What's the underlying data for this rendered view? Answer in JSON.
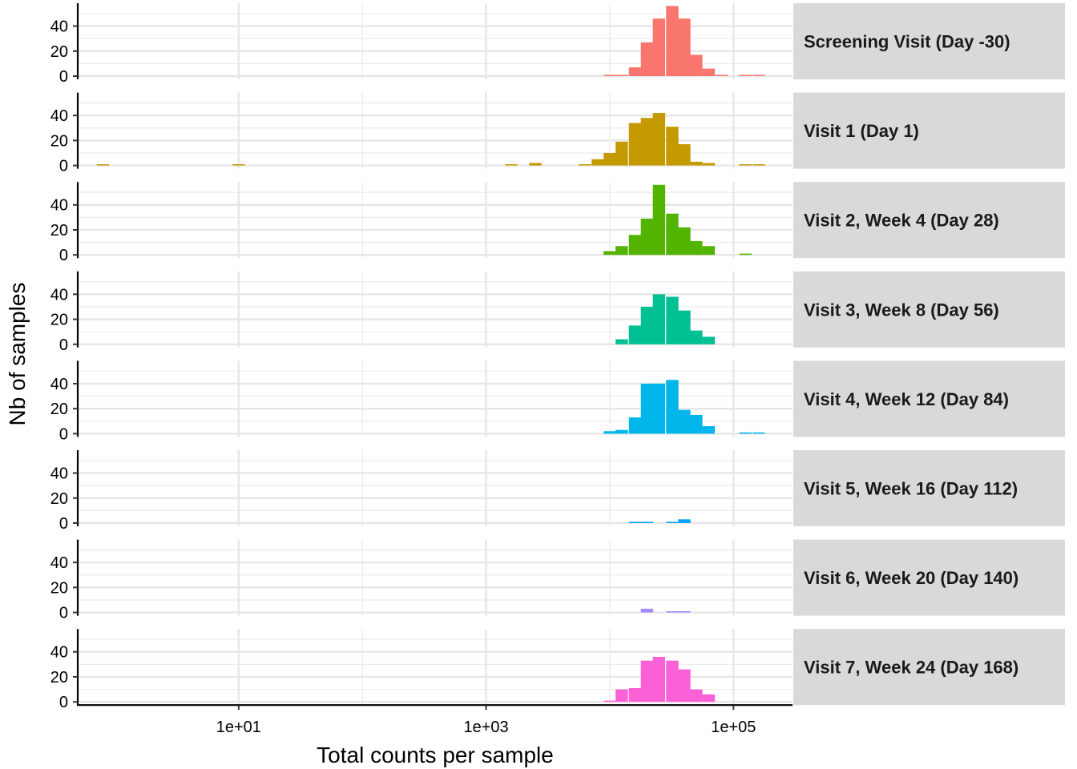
{
  "chart_data": {
    "type": "bar",
    "subtype": "faceted-histogram",
    "xlabel": "Total counts per sample",
    "ylabel": "Nb of samples",
    "x_scale": "log10",
    "xlim": [
      0.5,
      300000
    ],
    "ylim": [
      0,
      57
    ],
    "x_ticks": [
      {
        "value": 10,
        "label": "1e+01"
      },
      {
        "value": 1000,
        "label": "1e+03"
      },
      {
        "value": 100000,
        "label": "1e+05"
      }
    ],
    "y_ticks": [
      {
        "value": 0,
        "label": "0"
      },
      {
        "value": 20,
        "label": "20"
      },
      {
        "value": 40,
        "label": "40"
      }
    ],
    "grid": true,
    "legend": "none",
    "panels": [
      {
        "label": "Screening Visit (Day -30)",
        "color": "#F8766D",
        "bins": [
          {
            "x": 10000,
            "y": 1
          },
          {
            "x": 12500,
            "y": 1
          },
          {
            "x": 16000,
            "y": 7
          },
          {
            "x": 20000,
            "y": 27
          },
          {
            "x": 25000,
            "y": 46
          },
          {
            "x": 32000,
            "y": 56
          },
          {
            "x": 40000,
            "y": 46
          },
          {
            "x": 50000,
            "y": 17
          },
          {
            "x": 63000,
            "y": 6
          },
          {
            "x": 80000,
            "y": 1
          },
          {
            "x": 125000,
            "y": 1
          },
          {
            "x": 160000,
            "y": 1
          }
        ]
      },
      {
        "label": "Visit 1 (Day 1)",
        "color": "#C49A00",
        "bins": [
          {
            "x": 0.8,
            "y": 1
          },
          {
            "x": 10,
            "y": 1
          },
          {
            "x": 1600,
            "y": 1
          },
          {
            "x": 2500,
            "y": 2
          },
          {
            "x": 6300,
            "y": 1
          },
          {
            "x": 8000,
            "y": 5
          },
          {
            "x": 10000,
            "y": 10
          },
          {
            "x": 12500,
            "y": 19
          },
          {
            "x": 16000,
            "y": 34
          },
          {
            "x": 20000,
            "y": 38
          },
          {
            "x": 25000,
            "y": 42
          },
          {
            "x": 32000,
            "y": 31
          },
          {
            "x": 40000,
            "y": 17
          },
          {
            "x": 50000,
            "y": 3
          },
          {
            "x": 63000,
            "y": 2
          },
          {
            "x": 125000,
            "y": 1
          },
          {
            "x": 160000,
            "y": 1
          }
        ]
      },
      {
        "label": "Visit 2, Week 4 (Day 28)",
        "color": "#53B400",
        "bins": [
          {
            "x": 10000,
            "y": 3
          },
          {
            "x": 12500,
            "y": 7
          },
          {
            "x": 16000,
            "y": 16
          },
          {
            "x": 20000,
            "y": 29
          },
          {
            "x": 25000,
            "y": 56
          },
          {
            "x": 32000,
            "y": 33
          },
          {
            "x": 40000,
            "y": 22
          },
          {
            "x": 50000,
            "y": 11
          },
          {
            "x": 63000,
            "y": 7
          },
          {
            "x": 125000,
            "y": 1
          }
        ]
      },
      {
        "label": "Visit 3, Week 8 (Day 56)",
        "color": "#00C094",
        "bins": [
          {
            "x": 12500,
            "y": 4
          },
          {
            "x": 16000,
            "y": 15
          },
          {
            "x": 20000,
            "y": 30
          },
          {
            "x": 25000,
            "y": 40
          },
          {
            "x": 32000,
            "y": 38
          },
          {
            "x": 40000,
            "y": 27
          },
          {
            "x": 50000,
            "y": 11
          },
          {
            "x": 63000,
            "y": 6
          }
        ]
      },
      {
        "label": "Visit 4, Week 12 (Day 84)",
        "color": "#00B6EB",
        "bins": [
          {
            "x": 10000,
            "y": 2
          },
          {
            "x": 12500,
            "y": 3
          },
          {
            "x": 16000,
            "y": 13
          },
          {
            "x": 20000,
            "y": 40
          },
          {
            "x": 25000,
            "y": 40
          },
          {
            "x": 32000,
            "y": 43
          },
          {
            "x": 40000,
            "y": 19
          },
          {
            "x": 50000,
            "y": 15
          },
          {
            "x": 63000,
            "y": 6
          },
          {
            "x": 125000,
            "y": 1
          },
          {
            "x": 160000,
            "y": 1
          }
        ]
      },
      {
        "label": "Visit 5, Week 16 (Day 112)",
        "color": "#06A4FF",
        "bins": [
          {
            "x": 16000,
            "y": 1
          },
          {
            "x": 20000,
            "y": 1
          },
          {
            "x": 32000,
            "y": 1
          },
          {
            "x": 40000,
            "y": 3
          }
        ]
      },
      {
        "label": "Visit 6, Week 20 (Day 140)",
        "color": "#A58AFF",
        "bins": [
          {
            "x": 20000,
            "y": 3
          },
          {
            "x": 32000,
            "y": 1
          },
          {
            "x": 40000,
            "y": 1
          }
        ]
      },
      {
        "label": "Visit 7, Week 24 (Day 168)",
        "color": "#FB61D7",
        "bins": [
          {
            "x": 10000,
            "y": 1
          },
          {
            "x": 12500,
            "y": 10
          },
          {
            "x": 16000,
            "y": 11
          },
          {
            "x": 20000,
            "y": 33
          },
          {
            "x": 25000,
            "y": 36
          },
          {
            "x": 32000,
            "y": 33
          },
          {
            "x": 40000,
            "y": 26
          },
          {
            "x": 50000,
            "y": 10
          },
          {
            "x": 63000,
            "y": 6
          }
        ]
      }
    ]
  }
}
